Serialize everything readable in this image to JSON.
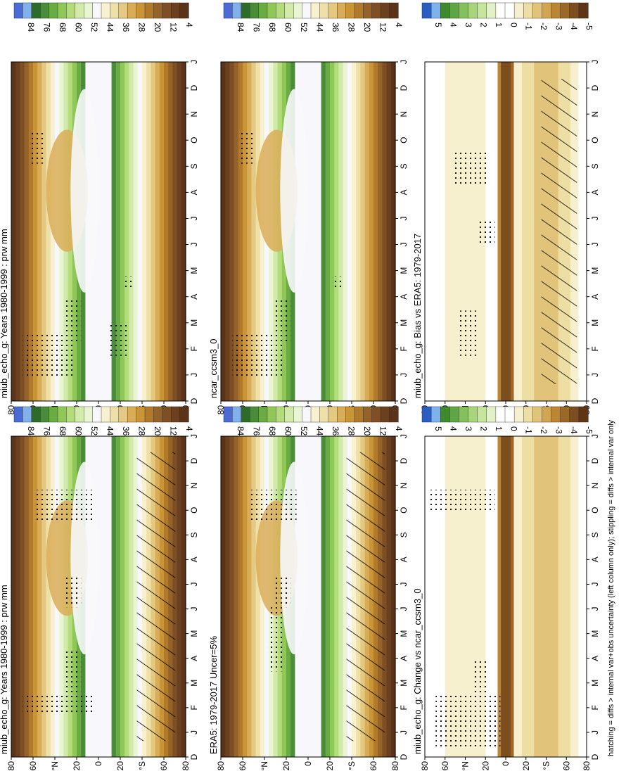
{
  "footnote": "hatching = diffs > internal var+obs uncertainty (left column only); stippling = diffs > internal var only",
  "chart_data": [
    {
      "type": "heatmap",
      "title": "miub_echo_g: Years 1980-1999 : prw mm",
      "x_ticks": [
        "D",
        "J",
        "F",
        "M",
        "A",
        "M",
        "J",
        "J",
        "A",
        "S",
        "O",
        "N",
        "D",
        "J"
      ],
      "y_ticks": [
        "80",
        "60",
        "°N",
        "20",
        "0",
        "20",
        "°S",
        "60",
        "80"
      ],
      "colorbar_labels": [
        "84",
        "76",
        "68",
        "60",
        "52",
        "44",
        "36",
        "28",
        "20",
        "12",
        "4"
      ],
      "palette": "prw",
      "hatch": true,
      "stipple": [
        [
          9,
          3,
          5,
          5
        ],
        [
          9,
          3,
          14,
          3
        ],
        [
          4,
          10,
          22,
          3
        ],
        [
          2,
          12,
          4,
          2
        ]
      ]
    },
    {
      "type": "heatmap",
      "title": "miub_echo_g: Years 1980-1999 : prw mm",
      "x_ticks": [
        "D",
        "J",
        "F",
        "M",
        "A",
        "M",
        "J",
        "J",
        "A",
        "S",
        "O",
        "N",
        "D",
        "J"
      ],
      "y_ticks": [
        "80",
        "60",
        "°N",
        "20",
        "0",
        "20",
        "°S",
        "60",
        "80"
      ],
      "colorbar_labels": [
        "84",
        "76",
        "68",
        "60",
        "52",
        "44",
        "36",
        "28",
        "20",
        "12",
        "4"
      ],
      "palette": "prw",
      "hatch": false,
      "stipple": [
        [
          2,
          9,
          2,
          4
        ],
        [
          9,
          3,
          5,
          4
        ],
        [
          17,
          3,
          4,
          3
        ],
        [
          3,
          3,
          21,
          3
        ],
        [
          19,
          2,
          10,
          1
        ]
      ]
    },
    {
      "type": "heatmap",
      "title": "ERA5: 1979-2017 Uncer=5%",
      "x_ticks": [
        "D",
        "J",
        "F",
        "M",
        "A",
        "M",
        "J",
        "J",
        "A",
        "S",
        "O",
        "N",
        "D",
        "J"
      ],
      "y_ticks": [
        "80",
        "60",
        "°N",
        "20",
        "0",
        "20",
        "°S",
        "60",
        "80"
      ],
      "colorbar_labels": [
        "84",
        "76",
        "68",
        "60",
        "52",
        "44",
        "36",
        "28",
        "20",
        "12",
        "4"
      ],
      "palette": "prw",
      "hatch": true,
      "stipple": [
        [
          8,
          3,
          8,
          6
        ],
        [
          9,
          3,
          14,
          3
        ],
        [
          5,
          8,
          22,
          3
        ]
      ]
    },
    {
      "type": "heatmap",
      "title": "ncar_ccsm3_0",
      "x_ticks": [
        "D",
        "J",
        "F",
        "M",
        "A",
        "M",
        "J",
        "J",
        "A",
        "S",
        "O",
        "N",
        "D",
        "J"
      ],
      "y_ticks": [
        "80",
        "60",
        "°N",
        "20",
        "0",
        "20",
        "°S",
        "60",
        "80"
      ],
      "colorbar_labels": [
        "84",
        "76",
        "68",
        "60",
        "52",
        "44",
        "36",
        "28",
        "20",
        "12",
        "4"
      ],
      "palette": "prw",
      "hatch": false,
      "stipple": [
        [
          2,
          9,
          2,
          4
        ],
        [
          9,
          3,
          5,
          4
        ],
        [
          3,
          3,
          21,
          3
        ],
        [
          19,
          2,
          10,
          1
        ]
      ]
    },
    {
      "type": "heatmap",
      "title": "miub_echo_g: Bias vs ERA5: 1979-2017",
      "x_ticks": [
        "D",
        "J",
        "F",
        "M",
        "A",
        "M",
        "J",
        "J",
        "A",
        "S",
        "O",
        "N",
        "D",
        "J"
      ],
      "y_ticks": [
        "80",
        "60",
        "°N",
        "20",
        "0",
        "20",
        "°S",
        "60",
        "80"
      ],
      "colorbar_labels": [
        "5",
        "4",
        "3",
        "2",
        "1",
        "0",
        "-1",
        "-2",
        "-3",
        "-4",
        "-5"
      ],
      "palette": "diff",
      "hatch": true,
      "stipple": [
        [
          6,
          4,
          4,
          4
        ],
        [
          10,
          3,
          14,
          2
        ],
        [
          5,
          7,
          19,
          3
        ]
      ]
    },
    {
      "type": "heatmap",
      "title": "miub_echo_g: Change vs ncar_ccsm3_0",
      "x_ticks": [
        "D",
        "J",
        "F",
        "M",
        "A",
        "M",
        "J",
        "J",
        "A",
        "S",
        "O",
        "N",
        "D",
        "J"
      ],
      "y_ticks": [
        "80",
        "60",
        "°N",
        "20",
        "0",
        "20",
        "°S",
        "60",
        "80"
      ],
      "colorbar_labels": [
        "5",
        "4",
        "3",
        "2",
        "1",
        "0",
        "-1",
        "-2",
        "-3",
        "-4",
        "-5"
      ],
      "palette": "diff",
      "hatch": false,
      "stipple": [
        [
          2,
          12,
          1,
          5
        ],
        [
          9,
          3,
          5,
          4
        ],
        [
          1,
          12,
          23,
          2
        ]
      ]
    }
  ],
  "colors": {
    "prw": [
      "#4a6cd4",
      "#7fb2ec",
      "#2e6b2a",
      "#4a8c3a",
      "#6aab44",
      "#90c858",
      "#b3dc7a",
      "#d2ebaa",
      "#eaf5d5",
      "#f8f8fc",
      "#f7f1cf",
      "#eee0a6",
      "#e4c982",
      "#d9ad58",
      "#c99536",
      "#b07a2a",
      "#95622a",
      "#7e4f24",
      "#6b401e",
      "#5a3318"
    ],
    "diff": [
      "#2b5dc0",
      "#7fb2ec",
      "#3f8a2f",
      "#5fa544",
      "#84c05d",
      "#a8d57c",
      "#c6e69e",
      "#e2f2c6",
      "#ffffff",
      "#ffffff",
      "#f6f0cf",
      "#eddfa3",
      "#e1c47a",
      "#d2a552",
      "#bb8534",
      "#9c6828",
      "#7c4d1e",
      "#5e3515"
    ]
  }
}
